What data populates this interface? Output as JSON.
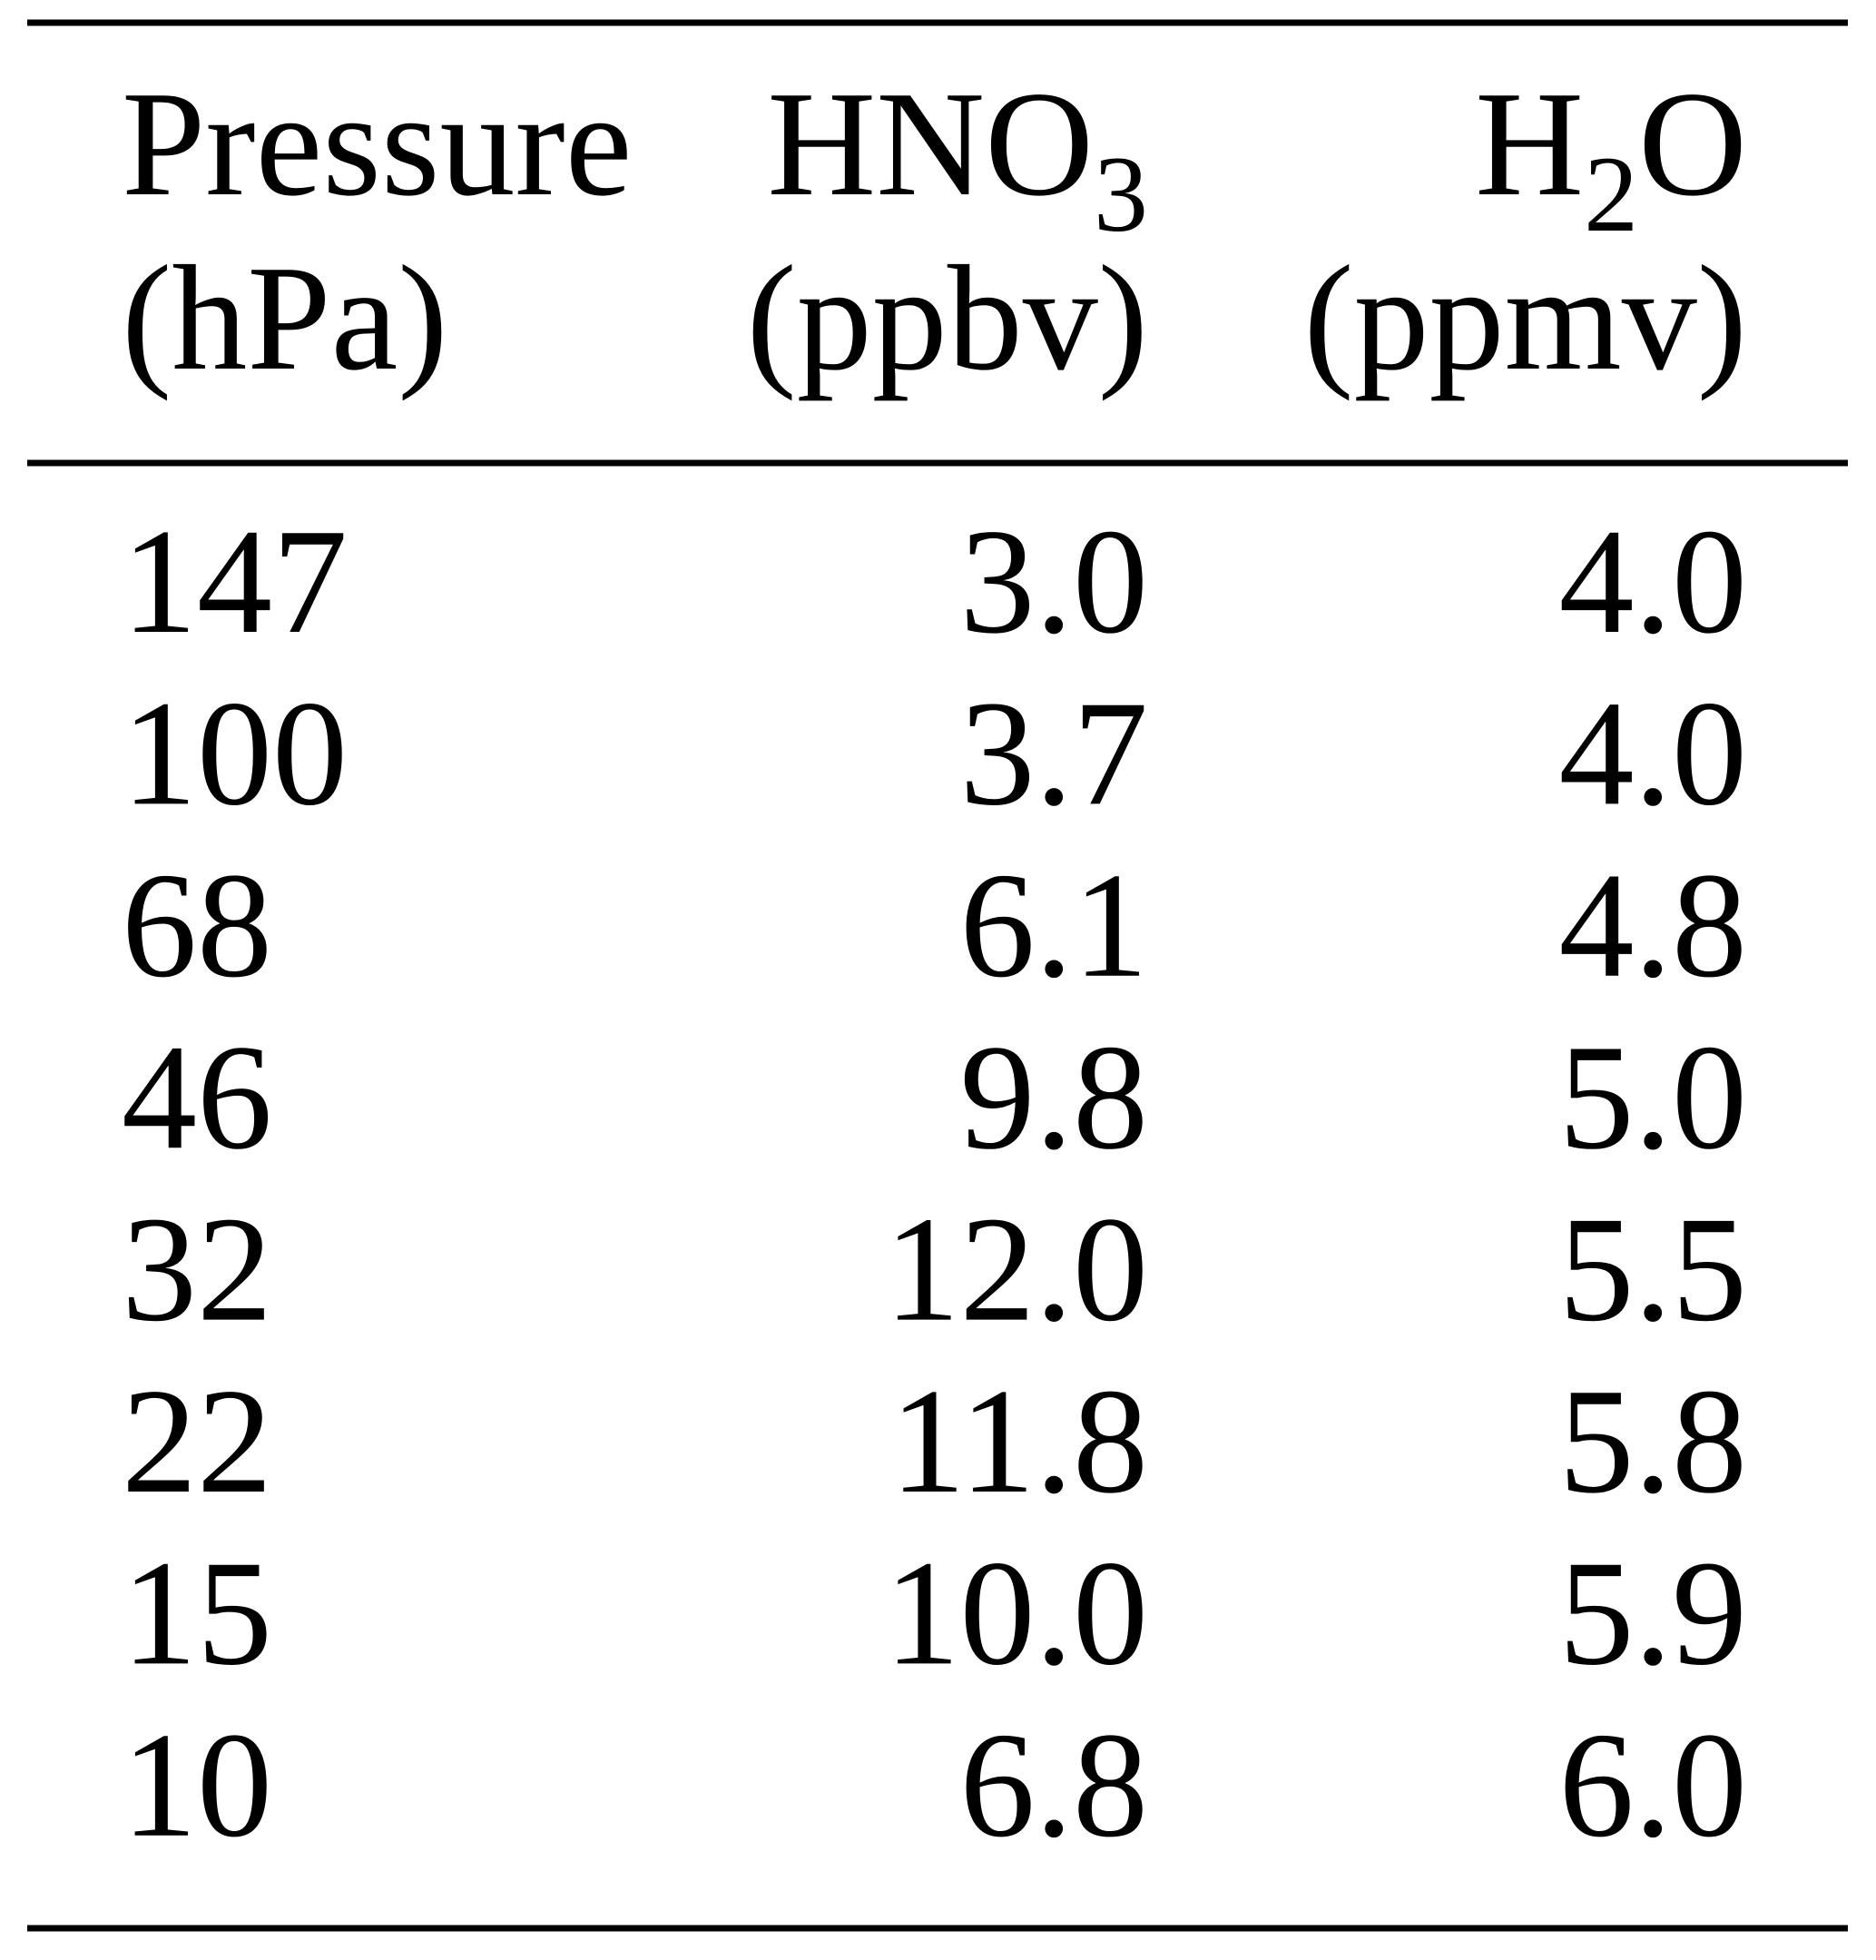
{
  "table": {
    "columns": [
      {
        "name": [
          {
            "text": "Pressure"
          }
        ],
        "unit": "(hPa)",
        "align": "left"
      },
      {
        "name": [
          {
            "text": "HNO"
          },
          {
            "text": "3",
            "sub": true
          }
        ],
        "unit": "(ppbv)",
        "align": "right"
      },
      {
        "name": [
          {
            "text": "H"
          },
          {
            "text": "2",
            "sub": true
          },
          {
            "text": "O"
          }
        ],
        "unit": "(ppmv)",
        "align": "right"
      }
    ],
    "rows": [
      [
        "147",
        "3.0",
        "4.0"
      ],
      [
        "100",
        "3.7",
        "4.0"
      ],
      [
        "68",
        "6.1",
        "4.8"
      ],
      [
        "46",
        "9.8",
        "5.0"
      ],
      [
        "32",
        "12.0",
        "5.5"
      ],
      [
        "22",
        "11.8",
        "5.8"
      ],
      [
        "15",
        "10.0",
        "5.9"
      ],
      [
        "10",
        "6.8",
        "6.0"
      ]
    ]
  }
}
